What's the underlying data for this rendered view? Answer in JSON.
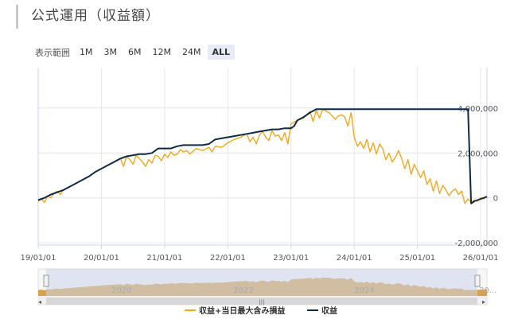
{
  "page": {
    "title": "公式運用（収益額）"
  },
  "range_selector": {
    "label": "表示範囲",
    "buttons": [
      {
        "label": "1M",
        "active": false
      },
      {
        "label": "3M",
        "active": false
      },
      {
        "label": "6M",
        "active": false
      },
      {
        "label": "12M",
        "active": false
      },
      {
        "label": "24M",
        "active": false
      },
      {
        "label": "ALL",
        "active": true
      }
    ]
  },
  "colors": {
    "profit_incl": "#f0a81b",
    "profit": "#0e2a47",
    "navigator_fill": "#d8a24a",
    "navigator_window": "#ccd6eb"
  },
  "chart_data": {
    "type": "line",
    "x_tick_labels": [
      "19/01/01",
      "20/01/01",
      "21/01/01",
      "22/01/01",
      "23/01/01",
      "24/01/01",
      "25/01/01",
      "26/01/01"
    ],
    "y_tick_labels": [
      "4,000,000",
      "2,000,000",
      "0",
      "-2,000,000"
    ],
    "y_ticks": [
      4000000,
      2000000,
      0,
      -2000000
    ],
    "xlim": [
      2019.0,
      2026.1
    ],
    "ylim": [
      -2100000,
      5800000
    ],
    "grid": true,
    "legend_position": "bottom",
    "series": [
      {
        "name": "収益+当日最大含み損益",
        "color": "#f0a81b",
        "x": [
          2019.0,
          2019.05,
          2019.1,
          2019.15,
          2019.2,
          2019.25,
          2019.3,
          2019.35,
          2019.4,
          2019.5,
          2019.6,
          2019.7,
          2019.8,
          2019.9,
          2020.0,
          2020.1,
          2020.2,
          2020.3,
          2020.35,
          2020.4,
          2020.45,
          2020.5,
          2020.55,
          2020.6,
          2020.65,
          2020.7,
          2020.75,
          2020.8,
          2020.85,
          2020.9,
          2020.95,
          2021.0,
          2021.05,
          2021.1,
          2021.15,
          2021.2,
          2021.25,
          2021.3,
          2021.35,
          2021.4,
          2021.5,
          2021.6,
          2021.7,
          2021.75,
          2021.8,
          2021.9,
          2022.0,
          2022.1,
          2022.2,
          2022.3,
          2022.35,
          2022.4,
          2022.45,
          2022.5,
          2022.55,
          2022.6,
          2022.65,
          2022.7,
          2022.75,
          2022.8,
          2022.85,
          2022.9,
          2022.95,
          2023.0,
          2023.1,
          2023.2,
          2023.25,
          2023.3,
          2023.35,
          2023.4,
          2023.45,
          2023.5,
          2023.6,
          2023.7,
          2023.75,
          2023.8,
          2023.85,
          2023.9,
          2023.95,
          2024.0,
          2024.05,
          2024.1,
          2024.15,
          2024.2,
          2024.25,
          2024.3,
          2024.35,
          2024.4,
          2024.45,
          2024.5,
          2024.55,
          2024.6,
          2024.65,
          2024.7,
          2024.75,
          2024.8,
          2024.85,
          2024.9,
          2024.95,
          2025.0,
          2025.05,
          2025.1,
          2025.15,
          2025.2,
          2025.25,
          2025.3,
          2025.35,
          2025.4,
          2025.45,
          2025.5,
          2025.55,
          2025.6,
          2025.65,
          2025.7,
          2025.75,
          2025.8,
          2025.85,
          2025.9,
          2025.95,
          2026.0,
          2026.05,
          2026.1
        ],
        "y": [
          -150000,
          -50000,
          -200000,
          100000,
          0,
          200000,
          300000,
          150000,
          350000,
          500000,
          650000,
          800000,
          950000,
          1150000,
          1300000,
          1450000,
          1600000,
          1750000,
          1400000,
          1850000,
          1700000,
          1500000,
          1900000,
          1750000,
          1600000,
          1400000,
          1700000,
          1550000,
          1900000,
          1850000,
          1650000,
          1950000,
          1800000,
          2050000,
          1900000,
          1950000,
          2150000,
          2050000,
          2100000,
          1950000,
          2200000,
          2100000,
          2250000,
          2050000,
          2300000,
          2250000,
          2450000,
          2600000,
          2700000,
          2850000,
          2500000,
          2700000,
          2400000,
          2800000,
          2950000,
          2700000,
          2550000,
          3000000,
          2750000,
          2800000,
          2550000,
          2900000,
          2400000,
          3300000,
          3450000,
          3550000,
          3700000,
          3850000,
          3400000,
          3900000,
          3550000,
          3950000,
          3800000,
          3500000,
          3650000,
          3700000,
          3600000,
          3200000,
          3800000,
          2700000,
          2300000,
          2500000,
          2200000,
          2600000,
          2050000,
          2450000,
          1950000,
          2400000,
          2200000,
          1700000,
          2000000,
          1600000,
          1800000,
          2100000,
          1750000,
          1300000,
          1700000,
          1050000,
          1500000,
          1200000,
          900000,
          1200000,
          600000,
          850000,
          300000,
          750000,
          200000,
          550000,
          350000,
          100000,
          300000,
          400000,
          150000,
          300000,
          -250000,
          -50000,
          -200000,
          -100000,
          -150000,
          0,
          -50000,
          100000
        ]
      },
      {
        "name": "収益",
        "color": "#0e2a47",
        "x": [
          2019.0,
          2019.1,
          2019.2,
          2019.3,
          2019.4,
          2019.5,
          2019.6,
          2019.7,
          2019.8,
          2019.9,
          2020.0,
          2020.1,
          2020.2,
          2020.3,
          2020.4,
          2020.5,
          2020.6,
          2020.7,
          2020.8,
          2020.9,
          2021.0,
          2021.1,
          2021.2,
          2021.3,
          2021.4,
          2021.5,
          2021.6,
          2021.7,
          2021.8,
          2021.9,
          2022.0,
          2022.1,
          2022.2,
          2022.3,
          2022.4,
          2022.5,
          2022.6,
          2022.7,
          2022.8,
          2022.9,
          2023.0,
          2023.05,
          2023.1,
          2023.2,
          2023.3,
          2023.4,
          2023.5,
          2024.0,
          2024.5,
          2025.0,
          2025.5,
          2025.8,
          2025.85,
          2025.9,
          2025.95,
          2026.0,
          2026.05,
          2026.1
        ],
        "y": [
          -100000,
          0,
          150000,
          250000,
          350000,
          500000,
          650000,
          800000,
          950000,
          1150000,
          1300000,
          1450000,
          1600000,
          1750000,
          1850000,
          1900000,
          1950000,
          1950000,
          2000000,
          2200000,
          2200000,
          2200000,
          2300000,
          2350000,
          2350000,
          2350000,
          2350000,
          2400000,
          2600000,
          2650000,
          2700000,
          2750000,
          2800000,
          2850000,
          2900000,
          2950000,
          3000000,
          3050000,
          3050000,
          3100000,
          3100000,
          3200000,
          3450000,
          3600000,
          3800000,
          3950000,
          3950000,
          3950000,
          3950000,
          3950000,
          3950000,
          3950000,
          -250000,
          -150000,
          -100000,
          -50000,
          0,
          50000
        ]
      }
    ]
  },
  "navigator": {
    "year_labels": [
      "2020",
      "2022",
      "2024"
    ],
    "end_label": "20..."
  },
  "legend": {
    "items": [
      "収益+当日最大含み損益",
      "収益"
    ]
  }
}
